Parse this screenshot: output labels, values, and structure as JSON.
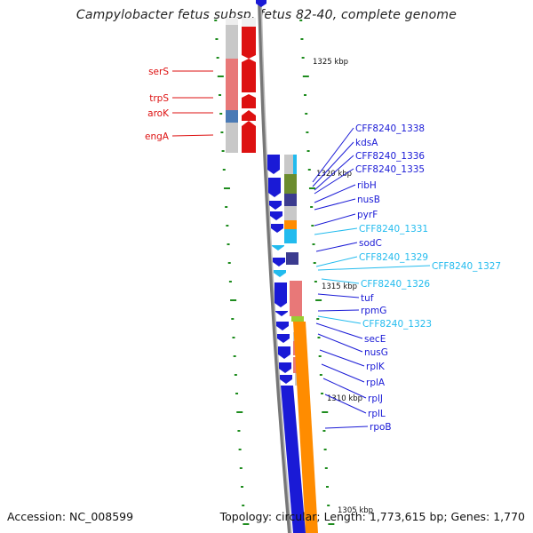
{
  "title": "Campylobacter fetus subsp. fetus 82-40, complete genome",
  "footer": {
    "accession": "Accession: NC_008599",
    "summary": "Topology: circular; Length: 1,773,615 bp; Genes: 1,770"
  },
  "scale_labels": [
    "1325 kbp",
    "1320 kbp",
    "1315 kbp",
    "1310 kbp",
    "1305 kbp"
  ],
  "colors": {
    "red": "#dd1111",
    "blue": "#1a1ad6",
    "cyan": "#22bbee",
    "orange": "#ff8c00",
    "pink": "#e87878",
    "olive": "#6b8c2e",
    "indigo": "#3b3b8f",
    "tick": "#1e8c1e",
    "backbone": "#888888"
  },
  "left_genes": [
    {
      "label": "serS",
      "color": "red"
    },
    {
      "label": "trpS",
      "color": "red"
    },
    {
      "label": "aroK",
      "color": "red"
    },
    {
      "label": "engA",
      "color": "red"
    }
  ],
  "right_genes": [
    {
      "label": "CFF8240_1338",
      "color": "blue"
    },
    {
      "label": "kdsA",
      "color": "blue"
    },
    {
      "label": "CFF8240_1336",
      "color": "blue"
    },
    {
      "label": "CFF8240_1335",
      "color": "blue"
    },
    {
      "label": "ribH",
      "color": "blue"
    },
    {
      "label": "nusB",
      "color": "blue"
    },
    {
      "label": "pyrF",
      "color": "blue"
    },
    {
      "label": "CFF8240_1331",
      "color": "cyan"
    },
    {
      "label": "sodC",
      "color": "blue"
    },
    {
      "label": "CFF8240_1329",
      "color": "cyan"
    },
    {
      "label": "CFF8240_1327",
      "color": "cyan"
    },
    {
      "label": "CFF8240_1326",
      "color": "cyan"
    },
    {
      "label": "tuf",
      "color": "blue"
    },
    {
      "label": "rpmG",
      "color": "blue"
    },
    {
      "label": "CFF8240_1323",
      "color": "cyan"
    },
    {
      "label": "secE",
      "color": "blue"
    },
    {
      "label": "nusG",
      "color": "blue"
    },
    {
      "label": "rplK",
      "color": "blue"
    },
    {
      "label": "rplA",
      "color": "blue"
    },
    {
      "label": "rplJ",
      "color": "blue"
    },
    {
      "label": "rplL",
      "color": "blue"
    },
    {
      "label": "rpoB",
      "color": "blue"
    }
  ]
}
